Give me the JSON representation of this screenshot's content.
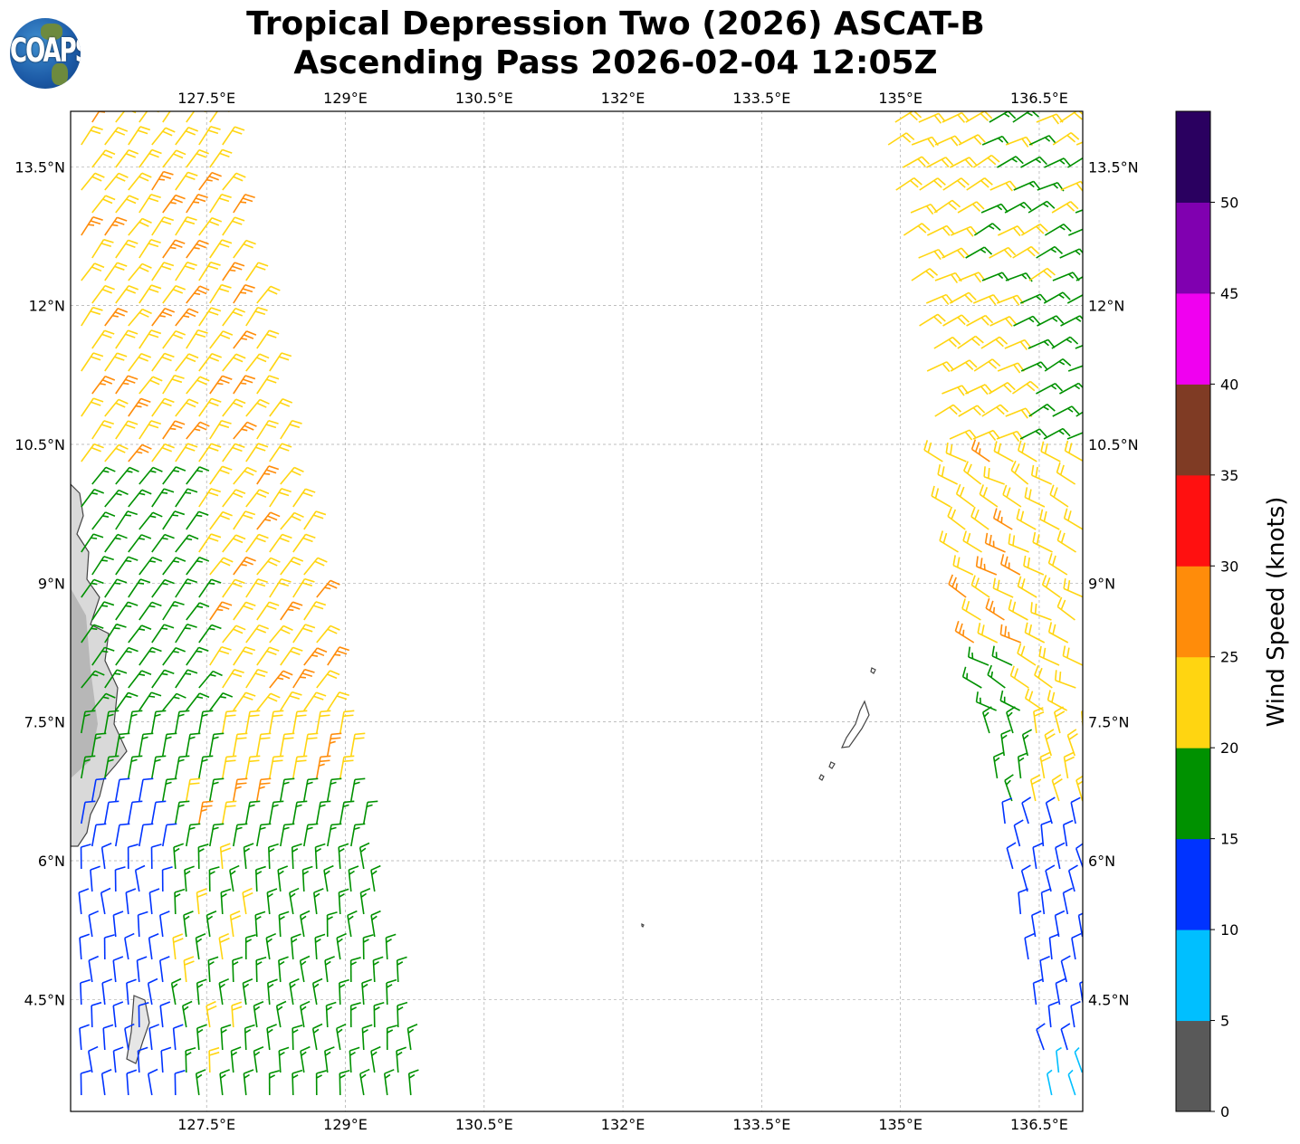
{
  "title": {
    "line1": "Tropical Depression Two (2026) ASCAT-B",
    "line2": "Ascending Pass 2026-02-04 12:05Z"
  },
  "logo_text": "COAPS",
  "map": {
    "lon_ticks": [
      "127.5°E",
      "129°E",
      "130.5°E",
      "132°E",
      "133.5°E",
      "135°E",
      "136.5°E"
    ],
    "lon_values": [
      127.5,
      129,
      130.5,
      132,
      133.5,
      135,
      136.5
    ],
    "lat_ticks": [
      "13.5°N",
      "12°N",
      "10.5°N",
      "9°N",
      "7.5°N",
      "6°N",
      "4.5°N"
    ],
    "lat_values": [
      13.5,
      12,
      10.5,
      9,
      7.5,
      6,
      4.5
    ],
    "extent": {
      "lon_min": 126.03,
      "lon_max": 136.97,
      "lat_min": 3.29,
      "lat_max": 14.1
    }
  },
  "colorbar": {
    "label": "Wind Speed (knots)",
    "ticks": [
      "0",
      "5",
      "10",
      "15",
      "20",
      "25",
      "30",
      "35",
      "40",
      "45",
      "50"
    ],
    "max": 55,
    "colors": [
      "#595959",
      "#00bfff",
      "#0033ff",
      "#009100",
      "#ffd511",
      "#ff8c0a",
      "#ff1010",
      "#7f3b24",
      "#f000f0",
      "#8000b0",
      "#2a0060"
    ]
  }
}
